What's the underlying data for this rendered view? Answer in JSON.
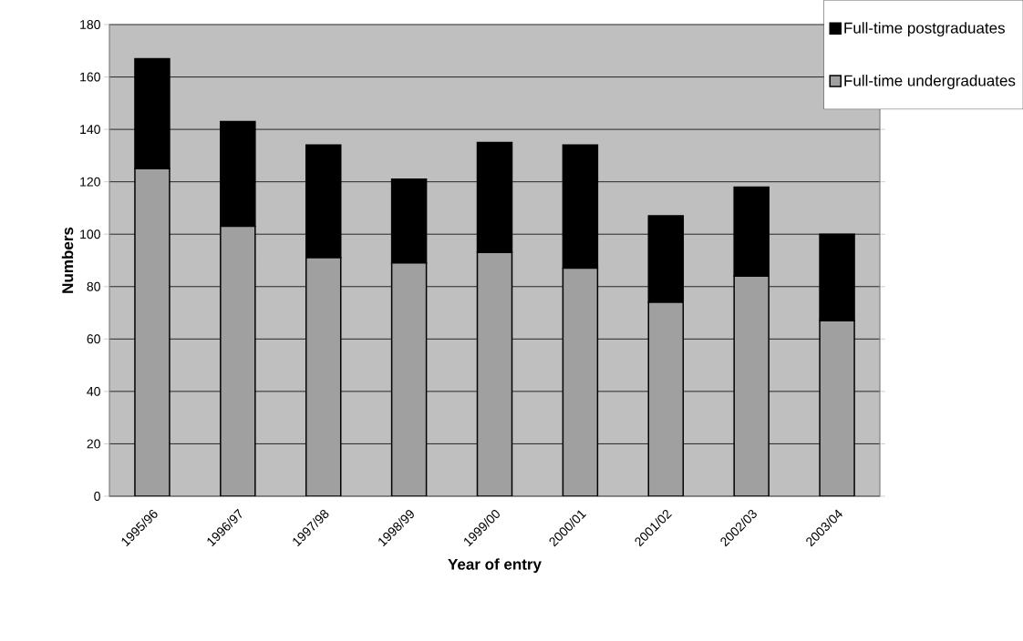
{
  "chart_data": {
    "type": "bar",
    "stacked": true,
    "xlabel": "Year of entry",
    "ylabel": "Numbers",
    "categories": [
      "1995/96",
      "1996/97",
      "1997/98",
      "1998/99",
      "1999/00",
      "2000/01",
      "2001/02",
      "2002/03",
      "2003/04"
    ],
    "series": [
      {
        "name": "Full-time undergraduates",
        "color": "#a0a0a0",
        "values": [
          125,
          103,
          91,
          89,
          93,
          87,
          74,
          84,
          67
        ]
      },
      {
        "name": "Full-time postgraduates",
        "color": "#000000",
        "values": [
          42,
          40,
          43,
          32,
          42,
          47,
          33,
          34,
          33
        ]
      }
    ],
    "ylim": [
      0,
      180
    ],
    "yticks": [
      0,
      20,
      40,
      60,
      80,
      100,
      120,
      140,
      160,
      180
    ],
    "grid": "y",
    "legend": "top right"
  }
}
